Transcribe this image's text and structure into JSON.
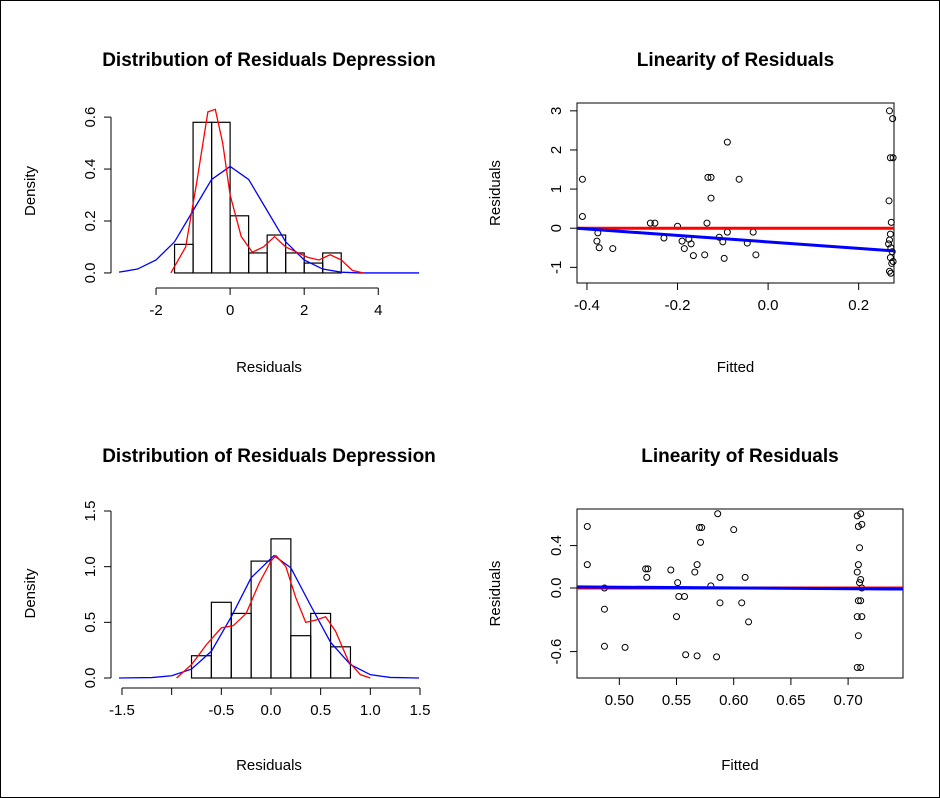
{
  "chart_data": [
    {
      "type": "histogram",
      "title": "Distribution of Residuals Depression",
      "x_label": "Residuals",
      "y_label": "Density",
      "bins": [
        -1.5,
        -1.0,
        -0.5,
        0.0,
        0.5,
        1.0,
        1.5,
        2.0,
        2.5,
        3.0
      ],
      "values": [
        0.11,
        0.58,
        0.58,
        0.22,
        0.077,
        0.146,
        0.077,
        0.038,
        0.077
      ],
      "bar_color": "#000000",
      "curves": [
        {
          "color": "#0000ff",
          "x": [
            -3,
            -2.5,
            -2,
            -1.5,
            -1,
            -0.5,
            0,
            0.5,
            1,
            1.5,
            2,
            2.5,
            3,
            3.5,
            5.1
          ],
          "values": [
            0.003,
            0.015,
            0.05,
            0.12,
            0.24,
            0.36,
            0.41,
            0.36,
            0.24,
            0.12,
            0.05,
            0.015,
            0.003,
            0,
            0
          ]
        },
        {
          "color": "#ff0000",
          "x": [
            -1.6,
            -1.2,
            -0.9,
            -0.6,
            -0.4,
            -0.2,
            0,
            0.3,
            0.6,
            0.9,
            1.2,
            1.5,
            1.8,
            2.1,
            2.4,
            2.7,
            3.0,
            3.3,
            3.6
          ],
          "values": [
            0,
            0.1,
            0.35,
            0.62,
            0.63,
            0.5,
            0.3,
            0.14,
            0.08,
            0.1,
            0.14,
            0.1,
            0.08,
            0.06,
            0.05,
            0.07,
            0.05,
            0.01,
            0
          ]
        }
      ],
      "xlim": [
        -3.0,
        5.1
      ],
      "ylim": [
        -0.031,
        0.662
      ],
      "xticks": [
        -2,
        0,
        2,
        4
      ],
      "yticks": [
        {
          "value": 0,
          "label": "0.0"
        },
        0.2,
        0.4,
        0.6
      ]
    },
    {
      "type": "scatter",
      "title": "Linearity of Residuals",
      "x_label": "Fitted",
      "y_label": "Residuals",
      "point_color": "#000000",
      "x": [
        -0.41,
        -0.41,
        -0.376,
        -0.378,
        -0.373,
        -0.343,
        -0.26,
        -0.25,
        -0.23,
        -0.2,
        -0.19,
        -0.185,
        -0.175,
        -0.17,
        -0.165,
        -0.14,
        -0.135,
        -0.133,
        -0.126,
        -0.126,
        -0.108,
        -0.1,
        -0.097,
        -0.09,
        -0.09,
        -0.064,
        -0.046,
        -0.033,
        -0.027,
        0.268,
        0.275,
        0.27,
        0.276,
        0.267,
        0.272,
        0.27,
        0.268,
        0.266,
        0.271,
        0.274,
        0.27,
        0.276,
        0.273,
        0.268,
        0.271
      ],
      "values": [
        1.25,
        0.3,
        -0.12,
        -0.33,
        -0.5,
        -0.52,
        0.13,
        0.13,
        -0.25,
        0.05,
        -0.33,
        -0.52,
        -0.28,
        -0.4,
        -0.7,
        -0.68,
        0.13,
        1.3,
        1.3,
        0.77,
        -0.23,
        -0.35,
        -0.77,
        2.2,
        -0.1,
        1.25,
        -0.38,
        -0.1,
        -0.68,
        3.0,
        2.8,
        1.8,
        1.8,
        0.7,
        0.15,
        -0.15,
        -0.3,
        -0.4,
        -0.5,
        -0.6,
        -0.75,
        -0.85,
        -0.9,
        -1.1,
        -1.15
      ],
      "lines": [
        {
          "color": "#ff0000",
          "x": [
            -0.422,
            0.278
          ],
          "values": [
            0,
            0
          ]
        },
        {
          "color": "#0000ff",
          "x": [
            -0.422,
            0.278
          ],
          "values": [
            0.0,
            -0.58
          ]
        }
      ],
      "xlim": [
        -0.422,
        0.278
      ],
      "ylim": [
        -1.4,
        3.2
      ],
      "xticks": [
        -0.4,
        -0.2,
        {
          "value": 0,
          "label": "0.0"
        },
        0.2
      ],
      "yticks": [
        -1,
        0,
        1,
        2,
        3
      ]
    },
    {
      "type": "histogram",
      "title": "Distribution of Residuals Depression",
      "x_label": "Residuals",
      "y_label": "Density",
      "bins": [
        -0.8,
        -0.6,
        -0.4,
        -0.2,
        0.0,
        0.2,
        0.4,
        0.6,
        0.8
      ],
      "values": [
        0.2,
        0.68,
        0.58,
        1.05,
        1.25,
        0.38,
        0.58,
        0.28
      ],
      "bar_color": "#000000",
      "curves": [
        {
          "color": "#0000ff",
          "x": [
            -1.53,
            -1.2,
            -1.0,
            -0.8,
            -0.6,
            -0.4,
            -0.2,
            0.03,
            0.2,
            0.4,
            0.6,
            0.8,
            1.0,
            1.2,
            1.49
          ],
          "values": [
            0,
            0.004,
            0.02,
            0.08,
            0.24,
            0.55,
            0.9,
            1.1,
            0.99,
            0.65,
            0.32,
            0.12,
            0.03,
            0.005,
            0
          ]
        },
        {
          "color": "#ff0000",
          "x": [
            -0.95,
            -0.8,
            -0.65,
            -0.5,
            -0.38,
            -0.25,
            -0.12,
            0.0,
            0.05,
            0.15,
            0.25,
            0.35,
            0.45,
            0.55,
            0.65,
            0.78,
            0.9,
            1.0
          ],
          "values": [
            0,
            0.12,
            0.3,
            0.45,
            0.47,
            0.58,
            0.85,
            1.05,
            1.1,
            1.0,
            0.72,
            0.5,
            0.52,
            0.55,
            0.42,
            0.15,
            0.03,
            0
          ]
        }
      ],
      "xlim": [
        -1.53,
        1.49
      ],
      "ylim": [
        -0.027,
        1.545
      ],
      "xticks": [
        -1.5,
        {
          "value": -1.0,
          "label": null
        },
        -0.5,
        {
          "value": 0,
          "label": "0.0"
        },
        0.5,
        {
          "value": 1.0,
          "label": "1.0"
        },
        1.5
      ],
      "yticks": [
        {
          "value": 0,
          "label": "0.0"
        },
        0.5,
        {
          "value": 1.0,
          "label": "1.0"
        },
        1.5
      ]
    },
    {
      "type": "scatter",
      "title": "Linearity of Residuals",
      "x_label": "Fitted",
      "y_label": "Residuals",
      "point_color": "#000000",
      "x": [
        0.472,
        0.472,
        0.487,
        0.487,
        0.487,
        0.505,
        0.523,
        0.525,
        0.524,
        0.545,
        0.551,
        0.552,
        0.55,
        0.557,
        0.558,
        0.566,
        0.568,
        0.57,
        0.572,
        0.571,
        0.568,
        0.58,
        0.585,
        0.586,
        0.588,
        0.588,
        0.6,
        0.607,
        0.61,
        0.613,
        0.708,
        0.711,
        0.709,
        0.712,
        0.71,
        0.709,
        0.708,
        0.711,
        0.71,
        0.712,
        0.709,
        0.711,
        0.708,
        0.712,
        0.709,
        0.708,
        0.711
      ],
      "values": [
        0.58,
        0.22,
        0.0,
        -0.2,
        -0.55,
        -0.56,
        0.18,
        0.18,
        0.1,
        0.17,
        0.05,
        -0.08,
        -0.27,
        -0.08,
        -0.63,
        0.15,
        0.22,
        0.57,
        0.57,
        0.43,
        -0.64,
        0.02,
        -0.65,
        0.7,
        0.1,
        -0.14,
        0.55,
        -0.14,
        0.1,
        -0.32,
        0.68,
        0.7,
        0.58,
        0.6,
        0.38,
        0.22,
        0.15,
        0.08,
        0.05,
        0.0,
        -0.12,
        -0.12,
        -0.27,
        -0.27,
        -0.45,
        -0.75,
        -0.75
      ],
      "lines": [
        {
          "color": "#ff0000",
          "x": [
            0.463,
            0.748
          ],
          "values": [
            0,
            0
          ]
        },
        {
          "color": "#0000ff",
          "x": [
            0.463,
            0.748
          ],
          "values": [
            0.01,
            -0.01
          ]
        }
      ],
      "xlim": [
        0.463,
        0.748
      ],
      "ylim": [
        -0.849,
        0.745
      ],
      "xticks": [
        {
          "value": 0.5,
          "label": "0.50"
        },
        0.55,
        {
          "value": 0.6,
          "label": "0.60"
        },
        0.65,
        {
          "value": 0.7,
          "label": "0.70"
        }
      ],
      "yticks": [
        -0.6,
        {
          "value": 0,
          "label": "0.0"
        },
        0.4
      ]
    }
  ]
}
